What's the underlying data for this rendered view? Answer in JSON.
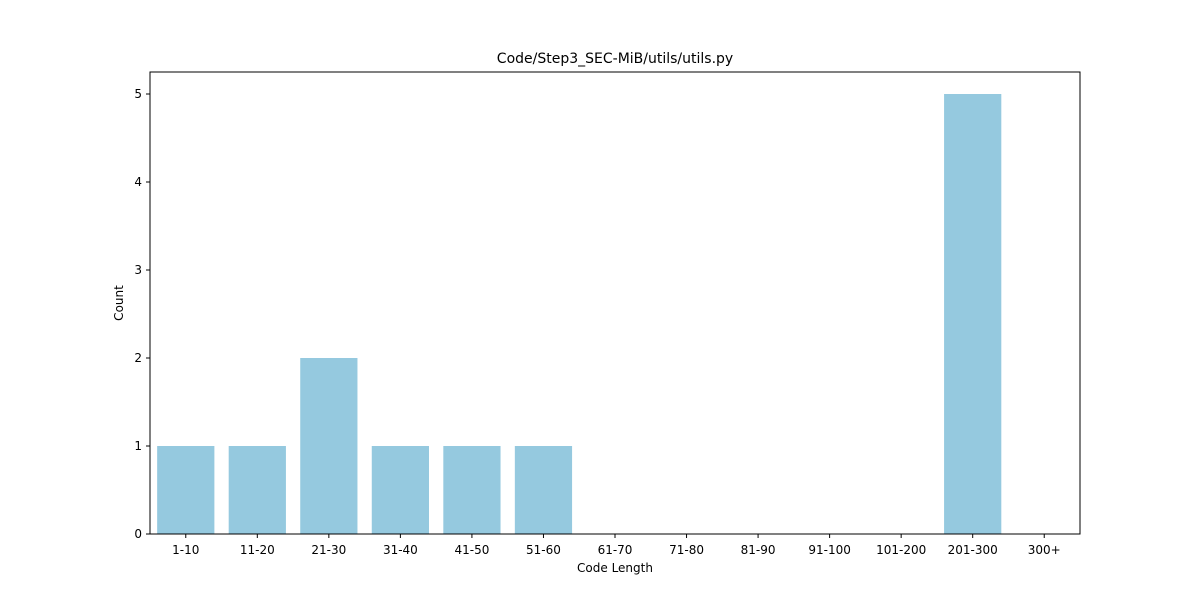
{
  "chart_data": {
    "type": "bar",
    "title": "Code/Step3_SEC-MiB/utils/utils.py",
    "xlabel": "Code Length",
    "ylabel": "Count",
    "categories": [
      "1-10",
      "11-20",
      "21-30",
      "31-40",
      "41-50",
      "51-60",
      "61-70",
      "71-80",
      "81-90",
      "91-100",
      "101-200",
      "201-300",
      "300+"
    ],
    "values": [
      1,
      1,
      2,
      1,
      1,
      1,
      0,
      0,
      0,
      0,
      0,
      5,
      0
    ],
    "ylim": [
      0,
      5.25
    ],
    "yticks": [
      0,
      1,
      2,
      3,
      4,
      5
    ],
    "bar_color": "#95c9df",
    "grid": false,
    "legend": "none"
  }
}
